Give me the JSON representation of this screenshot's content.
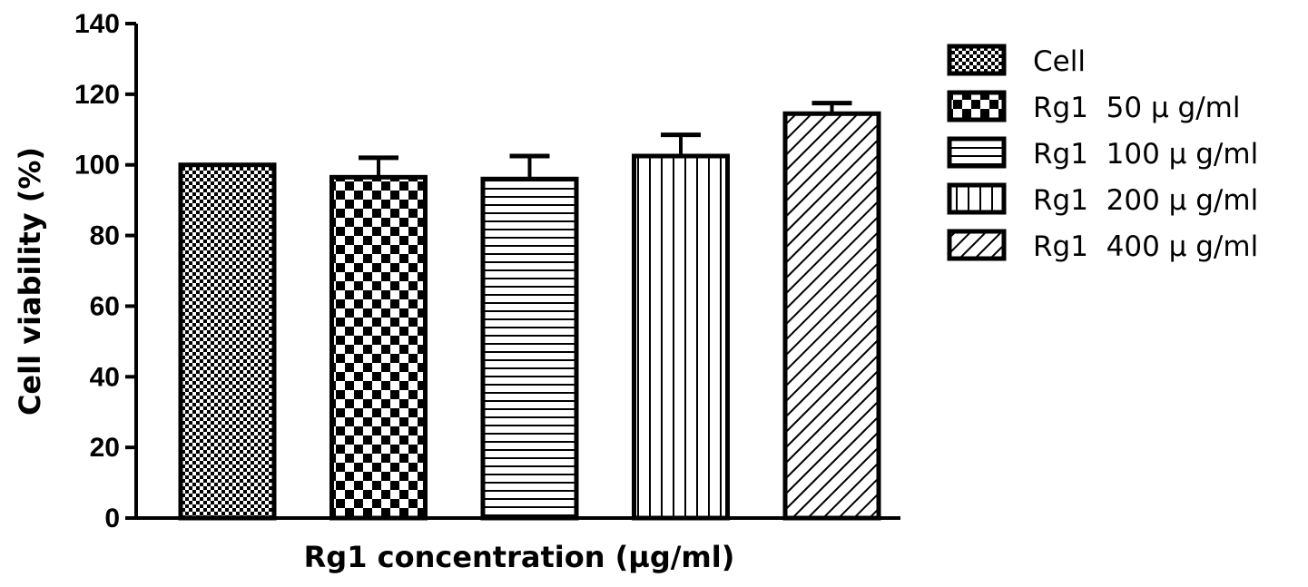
{
  "chart_data": {
    "type": "bar",
    "title": "",
    "xlabel": "Rg1 concentration (µg/ml)",
    "ylabel": "Cell viability (%)",
    "ylim": [
      0,
      140
    ],
    "yticks": [
      0,
      20,
      40,
      60,
      80,
      100,
      120,
      140
    ],
    "grid": false,
    "legend_position": "right",
    "series": [
      {
        "name": "Cell",
        "value": 100,
        "error": 0,
        "pattern": "fine-checker"
      },
      {
        "name": "Rg1  50 μ g/ml",
        "value": 96.5,
        "error": 5.5,
        "pattern": "checker"
      },
      {
        "name": "Rg1  100 μ g/ml",
        "value": 96,
        "error": 6.5,
        "pattern": "horizontal-lines"
      },
      {
        "name": "Rg1  200 μ g/ml",
        "value": 102.5,
        "error": 6,
        "pattern": "vertical-lines"
      },
      {
        "name": "Rg1  400 μ g/ml",
        "value": 114.5,
        "error": 3,
        "pattern": "diagonal-lines"
      }
    ],
    "colors": {
      "stroke": "#000000",
      "fill": "#ffffff"
    }
  }
}
